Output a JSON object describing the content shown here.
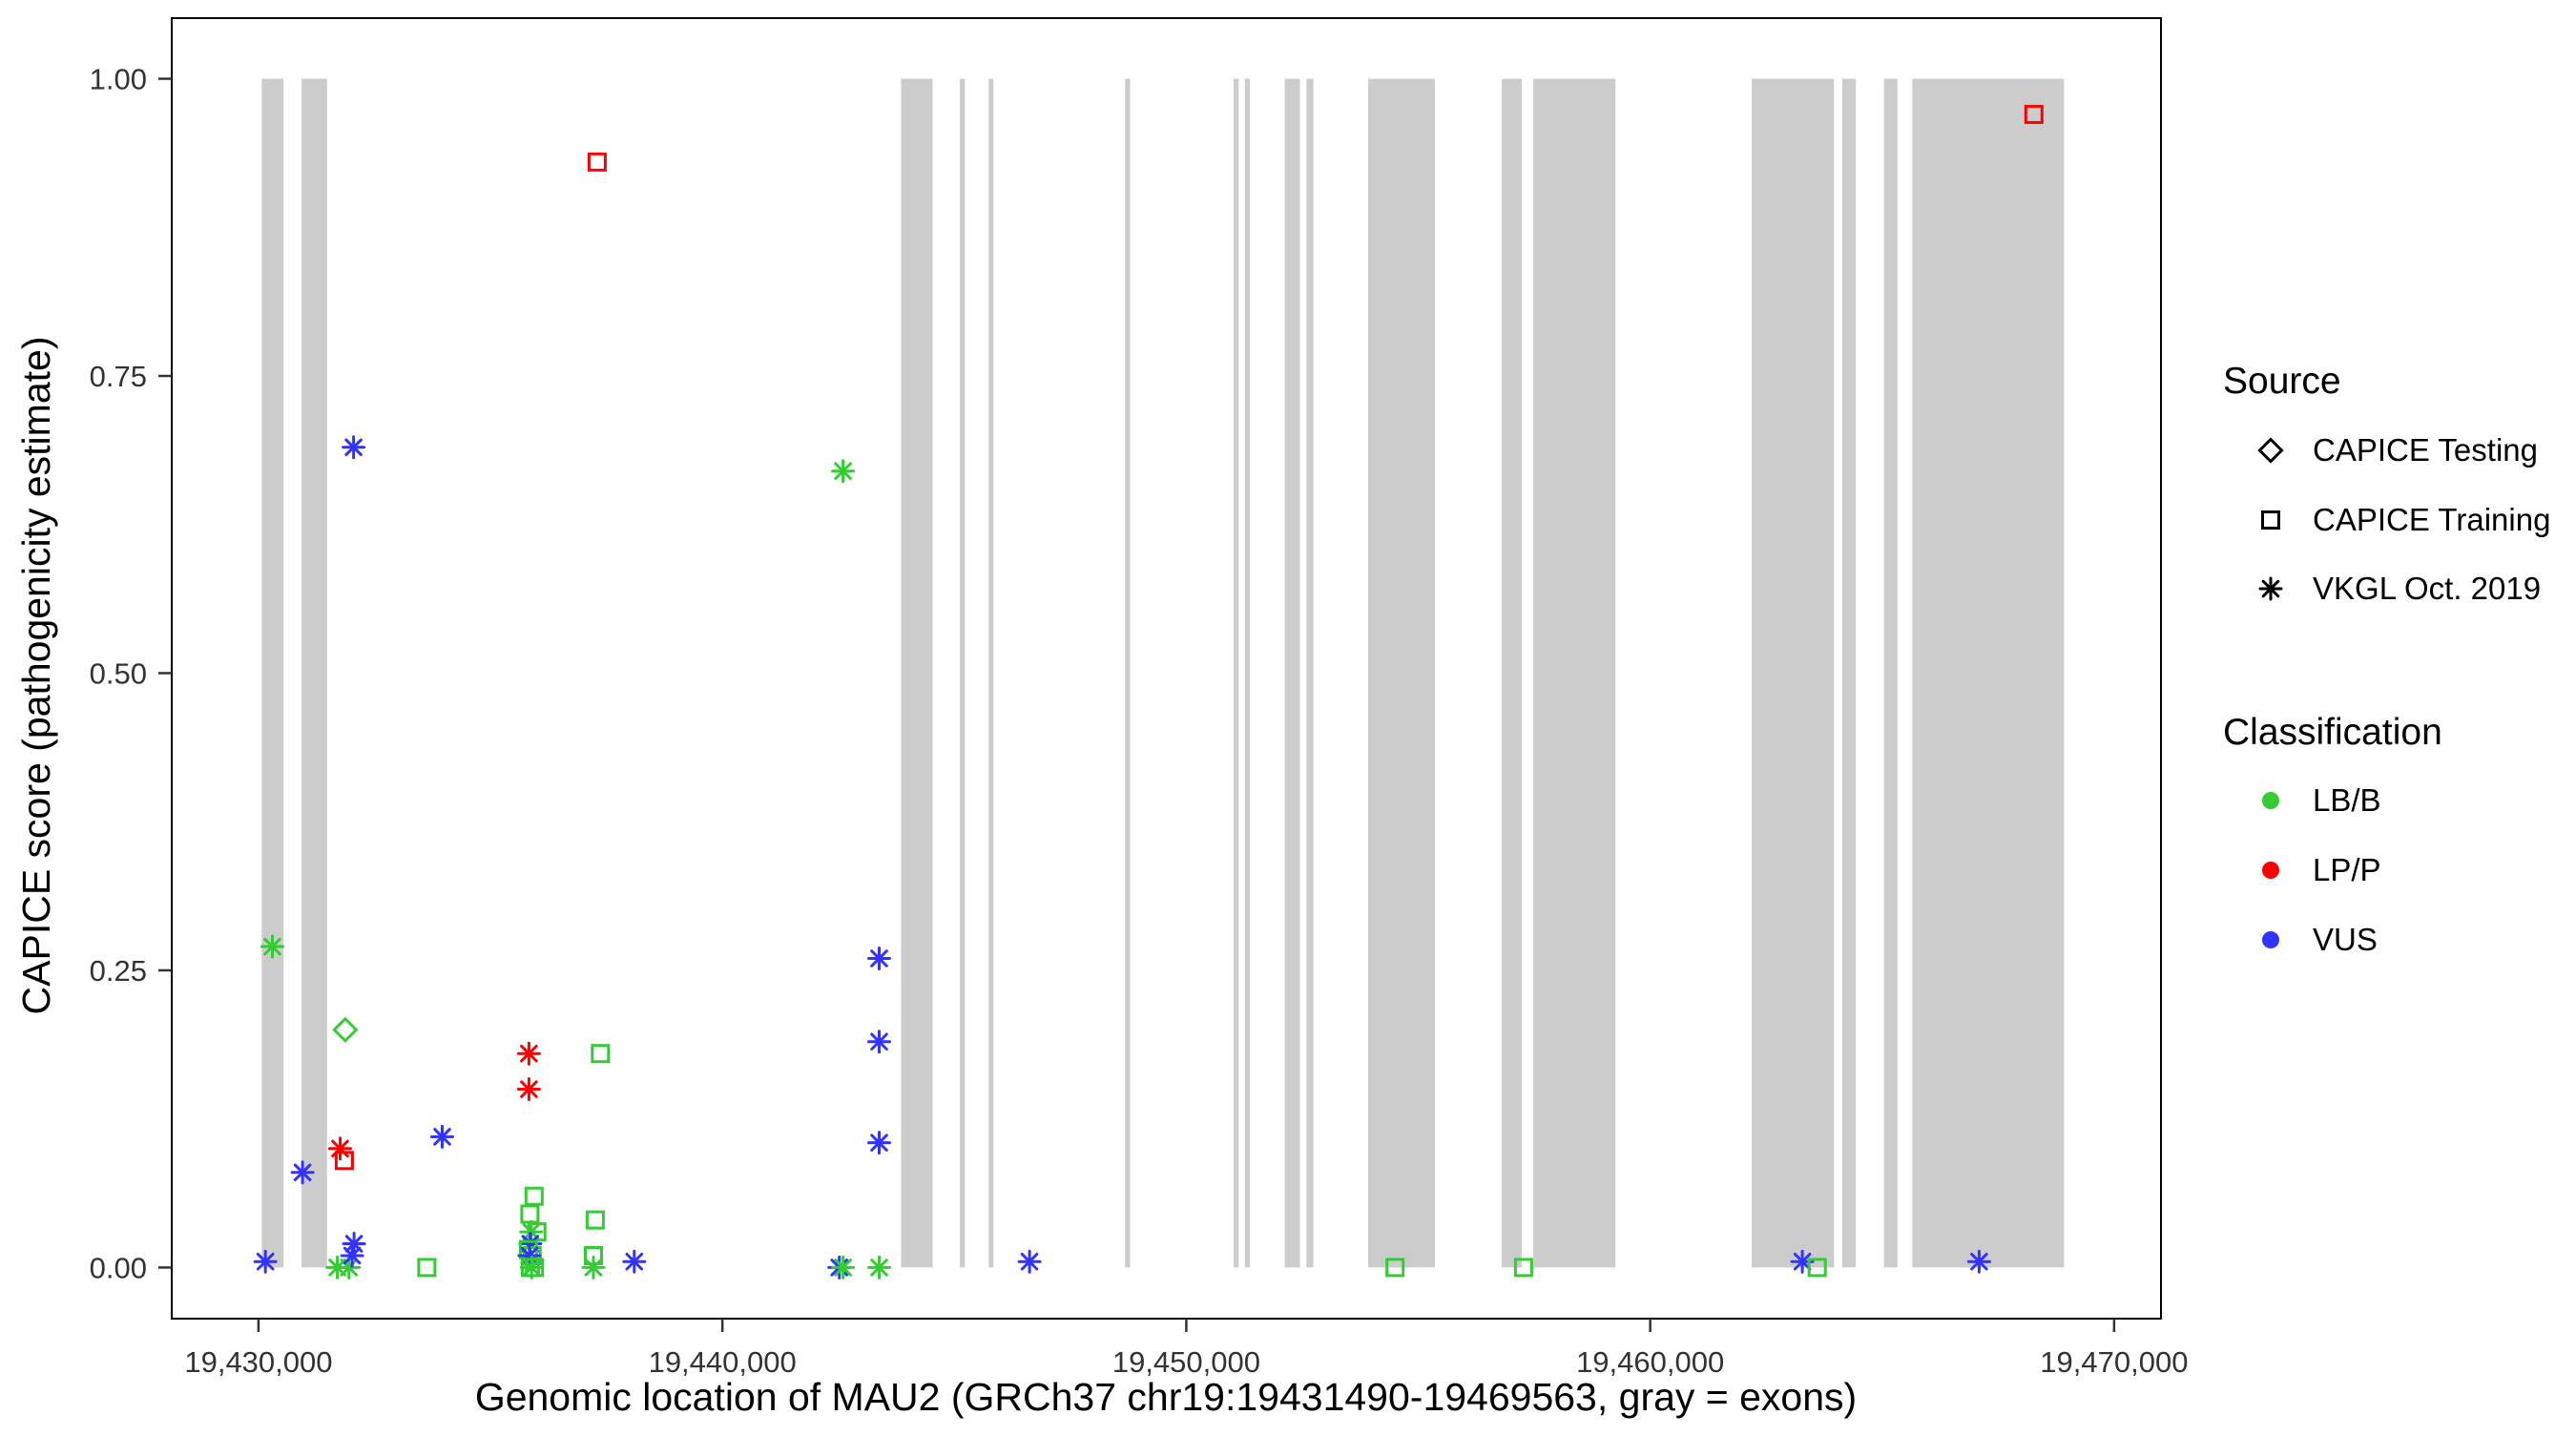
{
  "colors": {
    "exon": "#CCCCCC",
    "panel_border": "#000000",
    "tick": "#333333",
    "legend_marker": "#000000"
  },
  "legend": {
    "source": {
      "title": "Source",
      "items": [
        {
          "label": "CAPICE Testing",
          "shape": "diamond"
        },
        {
          "label": "CAPICE Training",
          "shape": "square"
        },
        {
          "label": "VKGL Oct. 2019",
          "shape": "asterisk"
        }
      ]
    },
    "classification": {
      "title": "Classification",
      "items": [
        {
          "label": "LB/B",
          "color": "#33CC33"
        },
        {
          "label": "LP/P",
          "color": "#FF0000"
        },
        {
          "label": "VUS",
          "color": "#3333FF"
        }
      ]
    }
  },
  "chart_data": {
    "type": "scatter",
    "title": "",
    "xlabel": "Genomic location of MAU2 (GRCh37 chr19:19431490-19469563, gray = exons)",
    "ylabel": "CAPICE score (pathogenicity estimate)",
    "xlim": [
      19428130,
      19471010
    ],
    "ylim": [
      -0.043,
      1.051
    ],
    "grid": false,
    "legend_position": "right",
    "x_ticks": [
      19430000,
      19440000,
      19450000,
      19460000,
      19470000
    ],
    "x_tick_labels": [
      "19,430,000",
      "19,440,000",
      "19,450,000",
      "19,460,000",
      "19,470,000"
    ],
    "y_ticks": [
      0,
      0.25,
      0.5,
      0.75,
      1.0
    ],
    "y_tick_labels": [
      "0.00",
      "0.25",
      "0.50",
      "0.75",
      "1.00"
    ],
    "exons": [
      [
        19430070,
        19430540
      ],
      [
        19430930,
        19431480
      ],
      [
        19443850,
        19444530
      ],
      [
        19445120,
        19445230
      ],
      [
        19445740,
        19445840
      ],
      [
        19448680,
        19448790
      ],
      [
        19451020,
        19451130
      ],
      [
        19451260,
        19451370
      ],
      [
        19452120,
        19452450
      ],
      [
        19452590,
        19452740
      ],
      [
        19453920,
        19455360
      ],
      [
        19456800,
        19457230
      ],
      [
        19457480,
        19459250
      ],
      [
        19462190,
        19463960
      ],
      [
        19464140,
        19464430
      ],
      [
        19465040,
        19465330
      ],
      [
        19465650,
        19468920
      ]
    ],
    "points": [
      {
        "x": 19430150,
        "y": 0.005,
        "source": "VKGL Oct. 2019",
        "classification": "VUS"
      },
      {
        "x": 19430300,
        "y": 0.27,
        "source": "VKGL Oct. 2019",
        "classification": "LB/B"
      },
      {
        "x": 19430950,
        "y": 0.08,
        "source": "VKGL Oct. 2019",
        "classification": "VUS"
      },
      {
        "x": 19431760,
        "y": 0.1,
        "source": "VKGL Oct. 2019",
        "classification": "LP/P"
      },
      {
        "x": 19431850,
        "y": 0.09,
        "source": "CAPICE Training",
        "classification": "LP/P"
      },
      {
        "x": 19431870,
        "y": 0.2,
        "source": "CAPICE Testing",
        "classification": "LB/B"
      },
      {
        "x": 19431700,
        "y": 0.0,
        "source": "VKGL Oct. 2019",
        "classification": "LB/B"
      },
      {
        "x": 19431950,
        "y": 0.0,
        "source": "VKGL Oct. 2019",
        "classification": "LB/B"
      },
      {
        "x": 19432050,
        "y": 0.69,
        "source": "VKGL Oct. 2019",
        "classification": "VUS"
      },
      {
        "x": 19432060,
        "y": 0.02,
        "source": "VKGL Oct. 2019",
        "classification": "VUS"
      },
      {
        "x": 19432020,
        "y": 0.01,
        "source": "VKGL Oct. 2019",
        "classification": "VUS"
      },
      {
        "x": 19433630,
        "y": 0.0,
        "source": "CAPICE Training",
        "classification": "LB/B"
      },
      {
        "x": 19433960,
        "y": 0.11,
        "source": "VKGL Oct. 2019",
        "classification": "VUS"
      },
      {
        "x": 19435830,
        "y": 0.18,
        "source": "VKGL Oct. 2019",
        "classification": "LP/P"
      },
      {
        "x": 19435830,
        "y": 0.15,
        "source": "VKGL Oct. 2019",
        "classification": "LP/P"
      },
      {
        "x": 19435940,
        "y": 0.06,
        "source": "CAPICE Training",
        "classification": "LB/B"
      },
      {
        "x": 19435850,
        "y": 0.045,
        "source": "CAPICE Training",
        "classification": "LB/B"
      },
      {
        "x": 19436000,
        "y": 0.03,
        "source": "CAPICE Training",
        "classification": "LB/B"
      },
      {
        "x": 19435880,
        "y": 0.03,
        "source": "VKGL Oct. 2019",
        "classification": "LB/B"
      },
      {
        "x": 19435860,
        "y": 0.02,
        "source": "VKGL Oct. 2019",
        "classification": "VUS"
      },
      {
        "x": 19435820,
        "y": 0.015,
        "source": "CAPICE Training",
        "classification": "LB/B"
      },
      {
        "x": 19435900,
        "y": 0.01,
        "source": "CAPICE Training",
        "classification": "LB/B"
      },
      {
        "x": 19435840,
        "y": 0.01,
        "source": "VKGL Oct. 2019",
        "classification": "VUS"
      },
      {
        "x": 19435860,
        "y": 0.0,
        "source": "CAPICE Training",
        "classification": "LB/B"
      },
      {
        "x": 19435950,
        "y": 0.0,
        "source": "CAPICE Training",
        "classification": "LB/B"
      },
      {
        "x": 19435890,
        "y": 0.0,
        "source": "VKGL Oct. 2019",
        "classification": "LB/B"
      },
      {
        "x": 19437300,
        "y": 0.93,
        "source": "CAPICE Training",
        "classification": "LP/P"
      },
      {
        "x": 19437370,
        "y": 0.18,
        "source": "CAPICE Training",
        "classification": "LB/B"
      },
      {
        "x": 19437260,
        "y": 0.04,
        "source": "CAPICE Training",
        "classification": "LB/B"
      },
      {
        "x": 19437220,
        "y": 0.01,
        "source": "CAPICE Training",
        "classification": "LB/B"
      },
      {
        "x": 19437220,
        "y": 0.0,
        "source": "VKGL Oct. 2019",
        "classification": "LB/B"
      },
      {
        "x": 19438100,
        "y": 0.005,
        "source": "VKGL Oct. 2019",
        "classification": "VUS"
      },
      {
        "x": 19442600,
        "y": 0.67,
        "source": "VKGL Oct. 2019",
        "classification": "LB/B"
      },
      {
        "x": 19442520,
        "y": 0.0,
        "source": "VKGL Oct. 2019",
        "classification": "VUS"
      },
      {
        "x": 19442600,
        "y": 0.0,
        "source": "VKGL Oct. 2019",
        "classification": "LB/B"
      },
      {
        "x": 19443380,
        "y": 0.26,
        "source": "VKGL Oct. 2019",
        "classification": "VUS"
      },
      {
        "x": 19443380,
        "y": 0.19,
        "source": "VKGL Oct. 2019",
        "classification": "VUS"
      },
      {
        "x": 19443380,
        "y": 0.105,
        "source": "VKGL Oct. 2019",
        "classification": "VUS"
      },
      {
        "x": 19443380,
        "y": 0.0,
        "source": "VKGL Oct. 2019",
        "classification": "LB/B"
      },
      {
        "x": 19446620,
        "y": 0.005,
        "source": "VKGL Oct. 2019",
        "classification": "VUS"
      },
      {
        "x": 19454500,
        "y": 0.0,
        "source": "CAPICE Training",
        "classification": "LB/B"
      },
      {
        "x": 19457270,
        "y": 0.0,
        "source": "CAPICE Training",
        "classification": "LB/B"
      },
      {
        "x": 19463280,
        "y": 0.005,
        "source": "VKGL Oct. 2019",
        "classification": "VUS"
      },
      {
        "x": 19463600,
        "y": 0.0,
        "source": "CAPICE Training",
        "classification": "LB/B"
      },
      {
        "x": 19467090,
        "y": 0.005,
        "source": "VKGL Oct. 2019",
        "classification": "VUS"
      },
      {
        "x": 19468270,
        "y": 0.97,
        "source": "CAPICE Training",
        "classification": "LP/P"
      }
    ]
  }
}
